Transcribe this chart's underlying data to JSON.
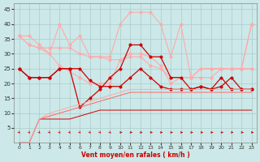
{
  "x": [
    0,
    1,
    2,
    3,
    4,
    5,
    6,
    7,
    8,
    9,
    10,
    11,
    12,
    13,
    14,
    15,
    16,
    17,
    18,
    19,
    20,
    21,
    22,
    23
  ],
  "line_light1": [
    36,
    36,
    33,
    30,
    40,
    33,
    36,
    29,
    29,
    29,
    40,
    44,
    44,
    44,
    40,
    29,
    40,
    22,
    22,
    22,
    25,
    25,
    25,
    40
  ],
  "line_light2": [
    36,
    33,
    32,
    32,
    32,
    32,
    30,
    29,
    29,
    28,
    28,
    29,
    29,
    26,
    25,
    22,
    22,
    22,
    25,
    25,
    25,
    25,
    25,
    40
  ],
  "line_light3": [
    36,
    33,
    32,
    30,
    26,
    24,
    22,
    20,
    20,
    20,
    28,
    30,
    30,
    29,
    26,
    20,
    22,
    22,
    25,
    25,
    25,
    25,
    25,
    25
  ],
  "line_dark1": [
    25,
    22,
    22,
    22,
    25,
    25,
    12,
    15,
    18,
    22,
    25,
    33,
    33,
    29,
    29,
    22,
    22,
    18,
    19,
    18,
    22,
    18,
    18,
    18
  ],
  "line_dark2": [
    25,
    22,
    22,
    22,
    25,
    25,
    25,
    21,
    19,
    19,
    19,
    22,
    25,
    22,
    19,
    18,
    18,
    18,
    19,
    18,
    19,
    22,
    18,
    18
  ],
  "line_diag1": [
    0,
    0,
    8,
    8,
    8,
    8,
    9,
    10,
    11,
    11,
    11,
    11,
    11,
    11,
    11,
    11,
    11,
    11,
    11,
    11,
    11,
    11,
    11,
    11
  ],
  "line_diag2": [
    0,
    0,
    8,
    9,
    10,
    11,
    12,
    13,
    14,
    15,
    16,
    17,
    17,
    17,
    17,
    17,
    17,
    17,
    17,
    17,
    17,
    17,
    17,
    17
  ],
  "line_diag3": [
    0,
    0,
    8,
    10,
    11,
    12,
    13,
    14,
    15,
    16,
    17,
    18,
    18,
    18,
    18,
    18,
    18,
    18,
    18,
    18,
    18,
    18,
    18,
    18
  ],
  "color_dark": "#cc0000",
  "color_light": "#ffaaaa",
  "color_medium": "#ff6666",
  "background": "#cce8e8",
  "grid_color": "#aacccc",
  "xlabel": "Vent moyen/en rafales ( km/h )",
  "ylim": [
    0,
    47
  ],
  "xlim": [
    -0.5,
    23.5
  ],
  "yticks": [
    5,
    10,
    15,
    20,
    25,
    30,
    35,
    40,
    45
  ],
  "xticks": [
    0,
    1,
    2,
    3,
    4,
    5,
    6,
    7,
    8,
    9,
    10,
    11,
    12,
    13,
    14,
    15,
    16,
    17,
    18,
    19,
    20,
    21,
    22,
    23
  ],
  "xlabels": [
    "0",
    "1",
    "2",
    "3",
    "4",
    "5",
    "6",
    "7",
    "8",
    "9",
    "10",
    "11",
    "12",
    "13",
    "14",
    "15",
    "16",
    "17",
    "18",
    "19",
    "20",
    "21",
    "22",
    "23"
  ]
}
